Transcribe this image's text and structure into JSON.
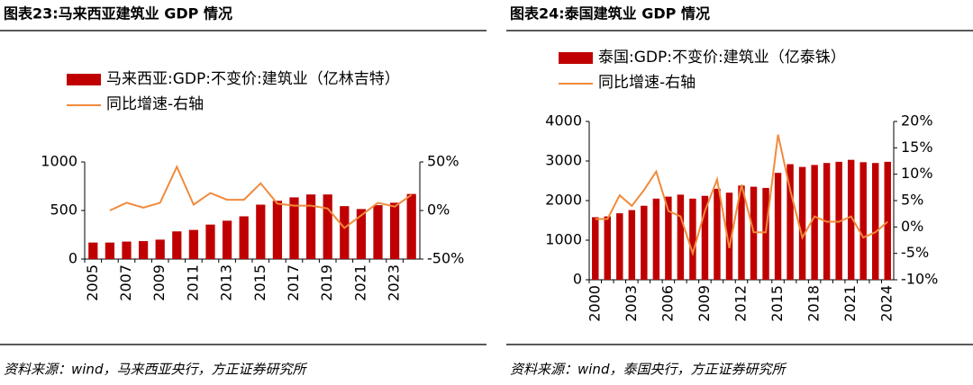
{
  "chart_data": [
    {
      "type": "bar-line",
      "title": "图表23:马来西亚建筑业 GDP 情况",
      "source": "资料来源：wind，马来西亚央行，方正证券研究所",
      "categories": [
        "2005",
        null,
        "2007",
        null,
        "2009",
        null,
        "2011",
        null,
        "2013",
        null,
        "2015",
        null,
        "2017",
        null,
        "2019",
        null,
        "2021",
        null,
        "2023",
        null
      ],
      "series": [
        {
          "name": "马来西亚:GDP:不变价:建筑业（亿林吉特）",
          "color": "#c00000",
          "kind": "bar",
          "values": [
            170,
            170,
            180,
            185,
            200,
            285,
            300,
            355,
            395,
            440,
            560,
            600,
            635,
            665,
            665,
            545,
            515,
            555,
            580,
            670
          ]
        },
        {
          "name": "同比增速-右轴",
          "color": "#f08a3c",
          "kind": "line",
          "axis": "y2",
          "values": [
            null,
            0,
            8,
            3,
            8,
            45,
            6,
            18,
            11,
            11,
            28,
            7,
            5,
            5,
            2,
            -18,
            -5,
            8,
            4,
            16
          ]
        }
      ],
      "ylim": [
        0,
        1000
      ],
      "yticks": [
        0,
        500,
        1000
      ],
      "y2lim": [
        -50,
        50
      ],
      "y2ticks": [
        {
          "value": -50,
          "label": "-50%"
        },
        {
          "value": 0,
          "label": "0%"
        },
        {
          "value": 50,
          "label": "50%"
        }
      ]
    },
    {
      "type": "bar-line",
      "title": "图表24:泰国建筑业 GDP 情况",
      "source": "资料来源：wind，泰国央行，方正证券研究所",
      "categories": [
        "2000",
        null,
        null,
        "2003",
        null,
        null,
        "2006",
        null,
        null,
        "2009",
        null,
        null,
        "2012",
        null,
        null,
        "2015",
        null,
        null,
        "2018",
        null,
        null,
        "2021",
        null,
        null,
        "2024"
      ],
      "series": [
        {
          "name": "泰国:GDP:不变价:建筑业（亿泰铢）",
          "color": "#c00000",
          "kind": "bar",
          "values": [
            1580,
            1600,
            1680,
            1760,
            1870,
            2050,
            2100,
            2150,
            2050,
            2120,
            2300,
            2200,
            2380,
            2350,
            2320,
            2700,
            2920,
            2850,
            2900,
            2950,
            2980,
            3030,
            2970,
            2950,
            2980
          ]
        },
        {
          "name": "同比增速-右轴",
          "color": "#f08a3c",
          "kind": "line",
          "axis": "y2",
          "values": [
            1.5,
            1.5,
            6,
            4,
            7,
            10.5,
            3,
            2,
            -5,
            3,
            9,
            -4,
            8,
            -1,
            -1,
            17.5,
            7,
            -2,
            2,
            1,
            1,
            2,
            -2,
            -1,
            1
          ]
        }
      ],
      "ylim": [
        0,
        4000
      ],
      "yticks": [
        0,
        1000,
        2000,
        3000,
        4000
      ],
      "y2lim": [
        -10,
        20
      ],
      "y2ticks": [
        {
          "value": -10,
          "label": "-10%"
        },
        {
          "value": -5,
          "label": "-5%"
        },
        {
          "value": 0,
          "label": "0%"
        },
        {
          "value": 5,
          "label": "5%"
        },
        {
          "value": 10,
          "label": "10%"
        },
        {
          "value": 15,
          "label": "15%"
        },
        {
          "value": 20,
          "label": "20%"
        }
      ]
    }
  ]
}
